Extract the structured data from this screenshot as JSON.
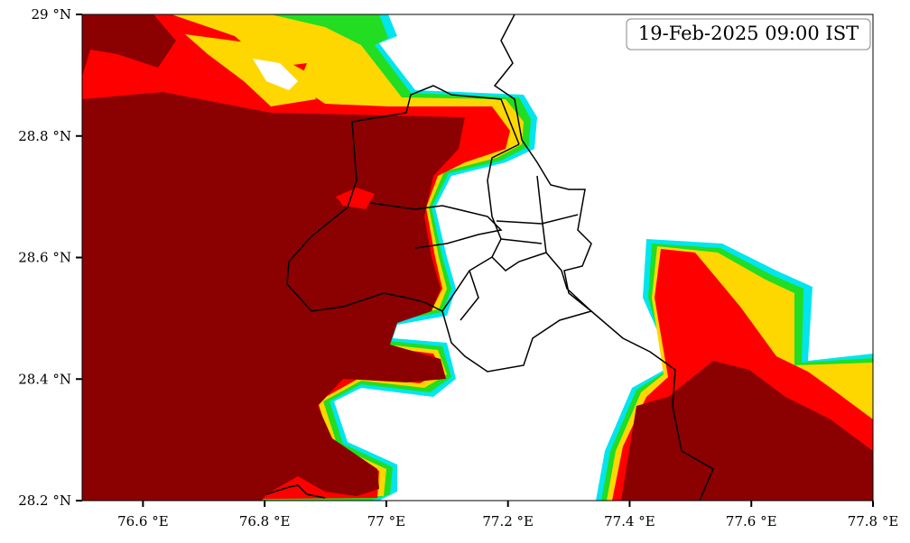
{
  "chart_data": {
    "type": "map",
    "annotation": "19-Feb-2025 09:00 IST",
    "xlim": [
      76.5,
      77.8
    ],
    "ylim": [
      28.2,
      29.0
    ],
    "xticks": [
      {
        "value": 76.6,
        "label": "76.6 °E"
      },
      {
        "value": 76.8,
        "label": "76.8 °E"
      },
      {
        "value": 77.0,
        "label": "77 °E"
      },
      {
        "value": 77.2,
        "label": "77.2 °E"
      },
      {
        "value": 77.4,
        "label": "77.4 °E"
      },
      {
        "value": 77.6,
        "label": "77.6 °E"
      },
      {
        "value": 77.8,
        "label": "77.8 °E"
      }
    ],
    "yticks": [
      {
        "value": 28.2,
        "label": "28.2 °N"
      },
      {
        "value": 28.4,
        "label": "28.4 °N"
      },
      {
        "value": 28.6,
        "label": "28.6 °N"
      },
      {
        "value": 28.8,
        "label": "28.8 °N"
      },
      {
        "value": 29.0,
        "label": "29 °N"
      }
    ]
  }
}
